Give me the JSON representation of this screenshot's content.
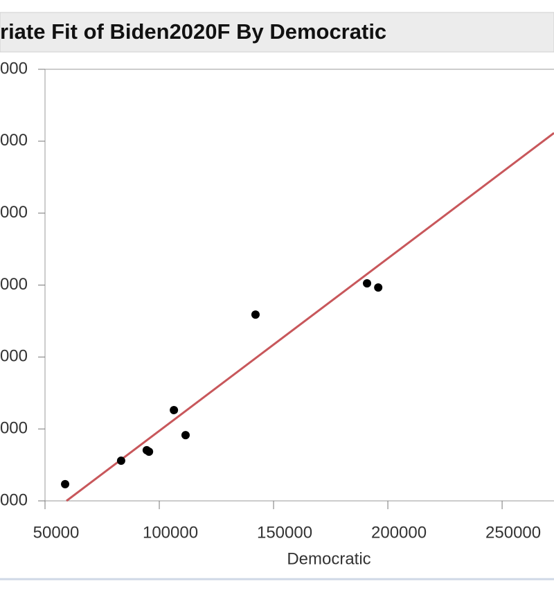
{
  "chart_data": {
    "type": "scatter",
    "title": "riate Fit of Biden2020F By Democratic",
    "x_label": "Democratic",
    "xlim": [
      50000,
      272700
    ],
    "xticks": [
      50000,
      100000,
      150000,
      200000,
      250000
    ],
    "ylim": [
      50000,
      350000
    ],
    "yticks": [
      {
        "value": 50000,
        "label": "000"
      },
      {
        "value": 100000,
        "label": "0000"
      },
      {
        "value": 150000,
        "label": "0000"
      },
      {
        "value": 200000,
        "label": "0000"
      },
      {
        "value": 250000,
        "label": "0000"
      },
      {
        "value": 300000,
        "label": "0000"
      },
      {
        "value": 350000,
        "label": "000"
      }
    ],
    "point_color": "#000000",
    "x": [
      58800,
      83300,
      94500,
      95500,
      106400,
      111500,
      142100,
      190900,
      195800
    ],
    "values": [
      61600,
      77900,
      85200,
      84200,
      113100,
      95700,
      179500,
      201200,
      198300
    ],
    "fit": {
      "color": "#c8575b",
      "x": [
        59400,
        272700
      ],
      "values": [
        50000,
        305700
      ]
    }
  }
}
